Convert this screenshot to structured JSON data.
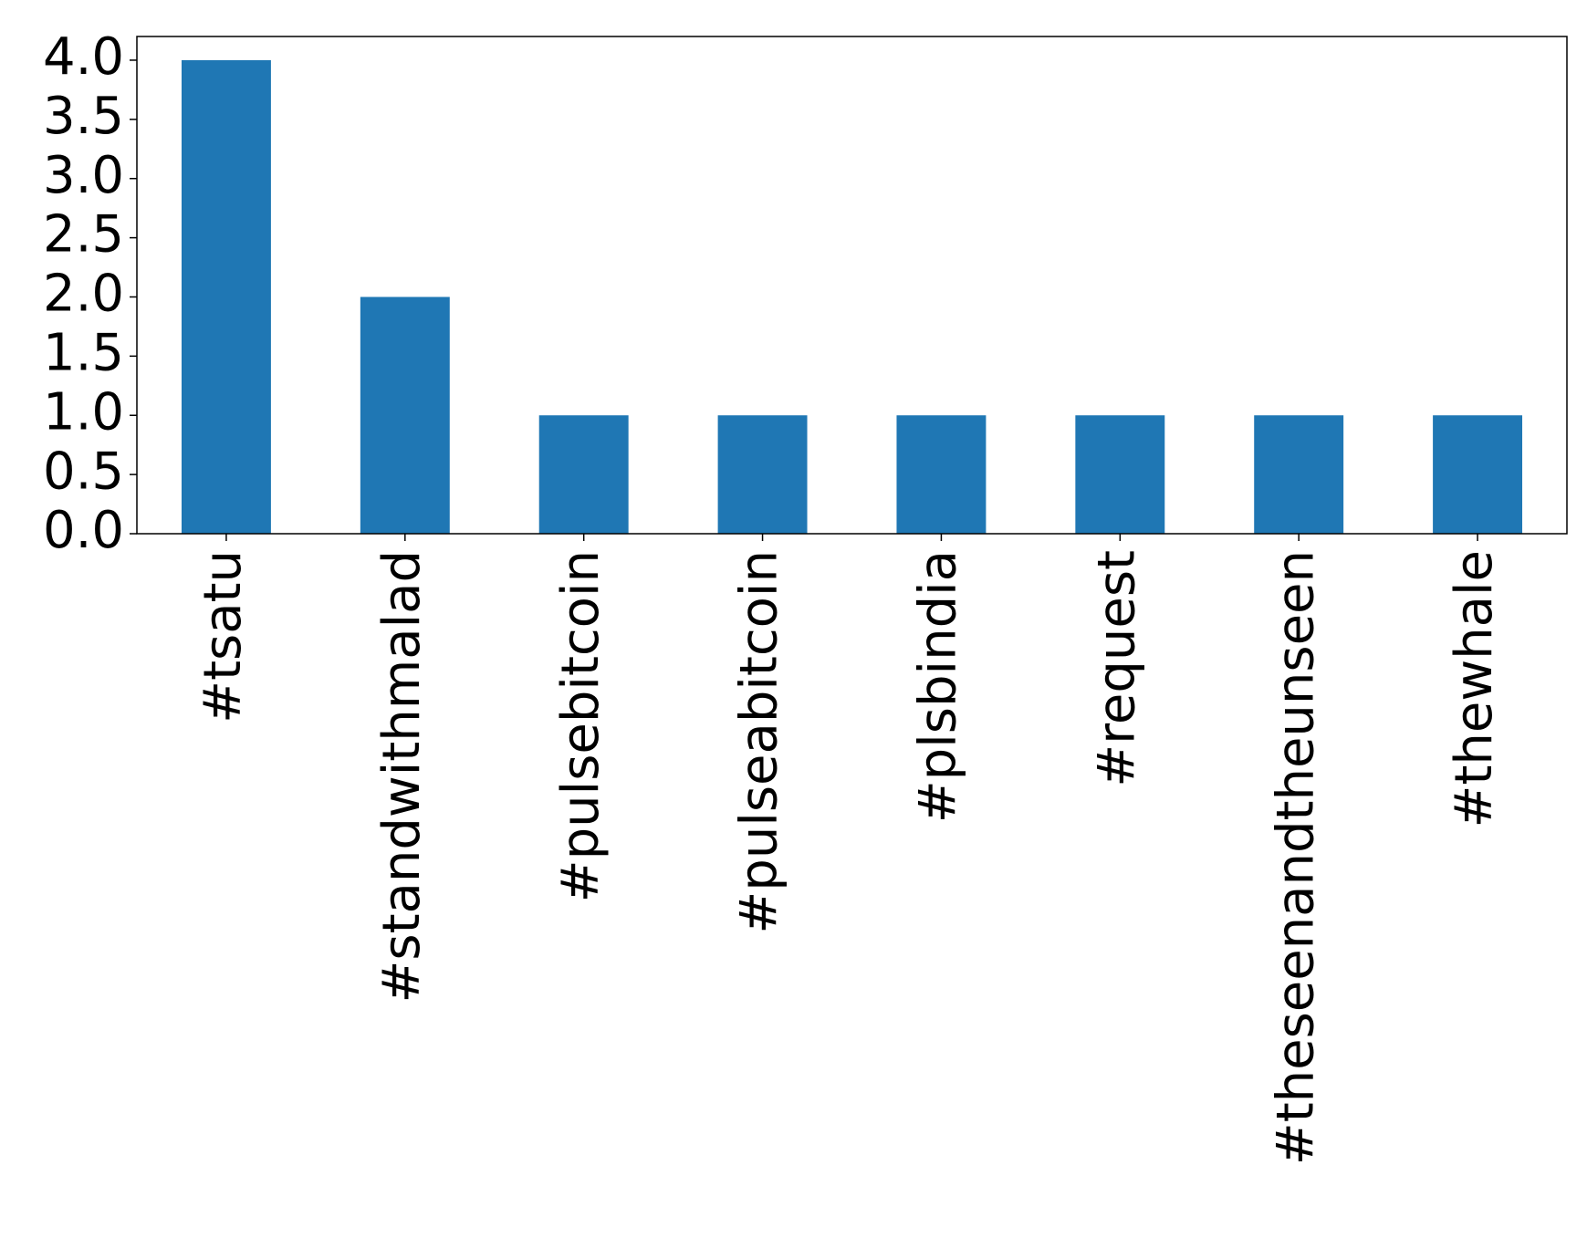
{
  "chart_data": {
    "type": "bar",
    "categories": [
      "#tsatu",
      "#standwithmalad",
      "#pulsebitcoin",
      "#pulseabitcoin",
      "#plsbindia",
      "#request",
      "#theseenandtheunseen",
      "#thewhale"
    ],
    "values": [
      4,
      2,
      1,
      1,
      1,
      1,
      1,
      1
    ],
    "color": "#1f77b4",
    "ylim": [
      0,
      4.2
    ],
    "yticks": [
      {
        "value": 0,
        "label": "0.0"
      },
      {
        "value": 0.5,
        "label": "0.5"
      },
      {
        "value": 1,
        "label": "1.0"
      },
      {
        "value": 1.5,
        "label": "1.5"
      },
      {
        "value": 2,
        "label": "2.0"
      },
      {
        "value": 2.5,
        "label": "2.5"
      },
      {
        "value": 3,
        "label": "3.0"
      },
      {
        "value": 3.5,
        "label": "3.5"
      },
      {
        "value": 4,
        "label": "4.0"
      }
    ],
    "grid": false
  }
}
